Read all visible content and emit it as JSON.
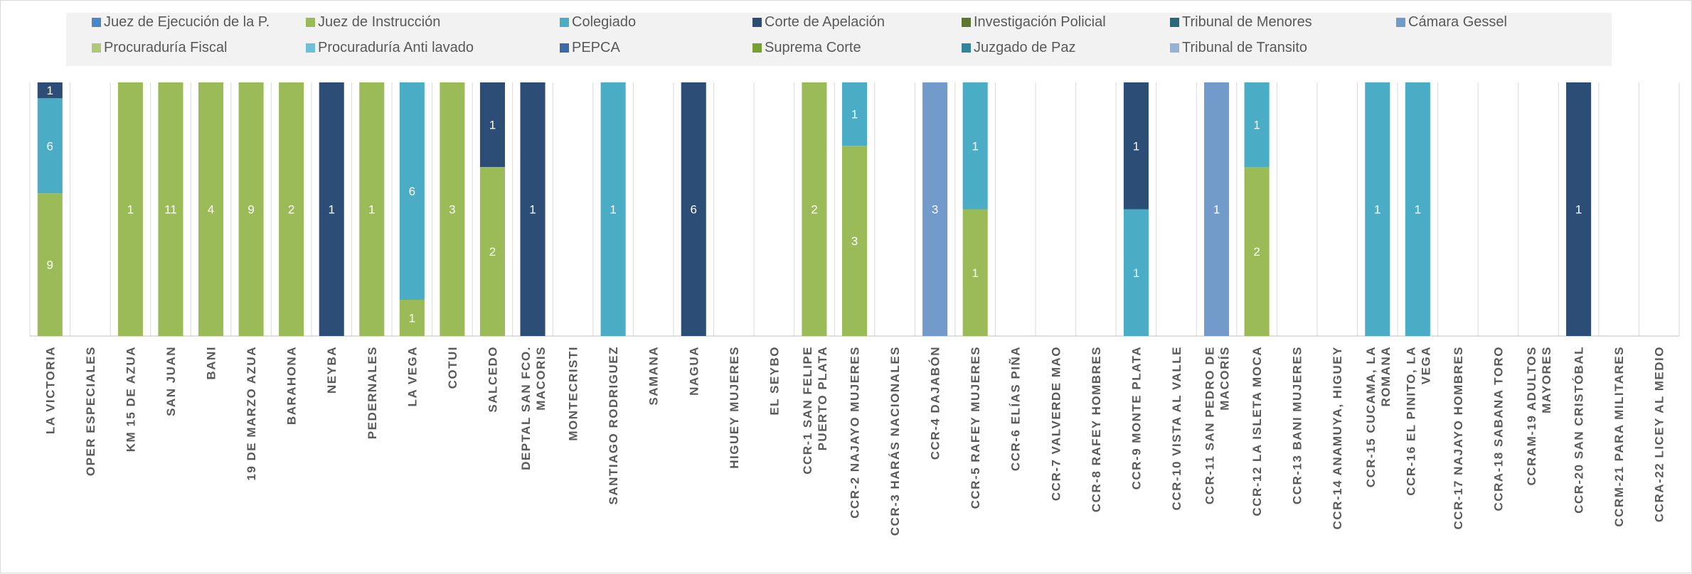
{
  "colors": {
    "Juez de Ejecución de la P.": "#4a86c8",
    "Juez de Instrucción": "#9bbb59",
    "Colegiado": "#4bacc6",
    "Corte de Apelación": "#2c4d75",
    "Investigación Policial": "#5f7530",
    "Tribunal de Menores": "#276a7c",
    "Cámara Gessel": "#729aca",
    "Procuraduría Fiscal": "#afc97a",
    "Procuraduría Anti lavado": "#6fc0d6",
    "PEPCA": "#3a6aa8",
    "Suprema Corte": "#77a033",
    "Juzgado de Paz": "#31859c",
    "Tribunal de Transito": "#95b3d7"
  },
  "chart_data": {
    "type": "bar",
    "stacked": "100%",
    "legend_position": "top",
    "gridlines": "vertical",
    "categories": [
      "LA VICTORIA",
      "OPER ESPECIALES",
      "KM 15 DE AZUA",
      "SAN JUAN",
      "BANI",
      "19 DE MARZO AZUA",
      "BARAHONA",
      "NEYBA",
      "PEDERNALES",
      "LA VEGA",
      "COTUI",
      "SALCEDO",
      "DEPTAL SAN FCO. MACORIS",
      "MONTECRISTI",
      "SANTIAGO RODRIGUEZ",
      "SAMANA",
      "NAGUA",
      "HIGUEY MUJERES",
      "EL SEYBO",
      "CCR-1 SAN FELIPE PUERTO PLATA",
      "CCR-2 NAJAYO MUJERES",
      "CCR-3 HARÁS NACIONALES",
      "CCR-4 DAJABÓN",
      "CCR-5 RAFEY MUJERES",
      "CCR-6 ELÍAS PIÑA",
      "CCR-7 VALVERDE MAO",
      "CCR-8 RAFEY HOMBRES",
      "CCR-9 MONTE PLATA",
      "CCR-10 VISTA AL VALLE",
      "CCR-11 SAN PEDRO DE MACORÍS",
      "CCR-12 LA ISLETA MOCA",
      "CCR-13 BANI MUJERES",
      "CCR-14 ANAMUYA, HIGUEY",
      "CCR-15 CUCAMA, LA ROMANA",
      "CCR-16 EL PINITO, LA VEGA",
      "CCR-17 NAJAYO HOMBRES",
      "CCRA-18 SABANA TORO",
      "CCRAM-19 ADULTOS MAYORES",
      "CCR-20 SAN CRISTÓBAL",
      "CCRM-21 PARA MILITARES",
      "CCRA-22 LICEY AL MEDIO"
    ],
    "series": [
      {
        "name": "Juez de Ejecución de la P.",
        "values": [
          0,
          0,
          0,
          0,
          0,
          0,
          0,
          0,
          0,
          0,
          0,
          0,
          0,
          0,
          0,
          0,
          0,
          0,
          0,
          0,
          0,
          0,
          0,
          0,
          0,
          0,
          0,
          0,
          0,
          0,
          0,
          0,
          0,
          0,
          0,
          0,
          0,
          0,
          0,
          0,
          0
        ]
      },
      {
        "name": "Juez de Instrucción",
        "values": [
          9,
          0,
          1,
          11,
          4,
          9,
          2,
          0,
          1,
          1,
          3,
          2,
          0,
          0,
          0,
          0,
          0,
          0,
          0,
          2,
          3,
          0,
          0,
          1,
          0,
          0,
          0,
          0,
          0,
          0,
          2,
          0,
          0,
          0,
          0,
          0,
          0,
          0,
          0,
          0,
          0
        ]
      },
      {
        "name": "Colegiado",
        "values": [
          6,
          0,
          0,
          0,
          0,
          0,
          0,
          0,
          0,
          6,
          0,
          0,
          0,
          0,
          1,
          0,
          0,
          0,
          0,
          0,
          1,
          0,
          0,
          1,
          0,
          0,
          0,
          1,
          0,
          0,
          1,
          0,
          0,
          1,
          1,
          0,
          0,
          0,
          0,
          0,
          0
        ]
      },
      {
        "name": "Corte de Apelación",
        "values": [
          1,
          0,
          0,
          0,
          0,
          0,
          0,
          1,
          0,
          0,
          0,
          1,
          1,
          0,
          0,
          0,
          6,
          0,
          0,
          0,
          0,
          0,
          0,
          0,
          0,
          0,
          0,
          1,
          0,
          0,
          0,
          0,
          0,
          0,
          0,
          0,
          0,
          0,
          1,
          0,
          0
        ]
      },
      {
        "name": "Investigación Policial",
        "values": [
          0,
          0,
          0,
          0,
          0,
          0,
          0,
          0,
          0,
          0,
          0,
          0,
          0,
          0,
          0,
          0,
          0,
          0,
          0,
          0,
          0,
          0,
          0,
          0,
          0,
          0,
          0,
          0,
          0,
          0,
          0,
          0,
          0,
          0,
          0,
          0,
          0,
          0,
          0,
          0,
          0
        ]
      },
      {
        "name": "Tribunal de Menores",
        "values": [
          0,
          0,
          0,
          0,
          0,
          0,
          0,
          0,
          0,
          0,
          0,
          0,
          0,
          0,
          0,
          0,
          0,
          0,
          0,
          0,
          0,
          0,
          0,
          0,
          0,
          0,
          0,
          0,
          0,
          0,
          0,
          0,
          0,
          0,
          0,
          0,
          0,
          0,
          0,
          0,
          0
        ]
      },
      {
        "name": "Cámara Gessel",
        "values": [
          0,
          0,
          0,
          0,
          0,
          0,
          0,
          0,
          0,
          0,
          0,
          0,
          0,
          0,
          0,
          0,
          0,
          0,
          0,
          0,
          0,
          0,
          3,
          0,
          0,
          0,
          0,
          0,
          0,
          1,
          0,
          0,
          0,
          0,
          0,
          0,
          0,
          0,
          0,
          0,
          0
        ]
      },
      {
        "name": "Procuraduría Fiscal",
        "values": [
          0,
          0,
          0,
          0,
          0,
          0,
          0,
          0,
          0,
          0,
          0,
          0,
          0,
          0,
          0,
          0,
          0,
          0,
          0,
          0,
          0,
          0,
          0,
          0,
          0,
          0,
          0,
          0,
          0,
          0,
          0,
          0,
          0,
          0,
          0,
          0,
          0,
          0,
          0,
          0,
          0
        ]
      },
      {
        "name": "Procuraduría Anti lavado",
        "values": [
          0,
          0,
          0,
          0,
          0,
          0,
          0,
          0,
          0,
          0,
          0,
          0,
          0,
          0,
          0,
          0,
          0,
          0,
          0,
          0,
          0,
          0,
          0,
          0,
          0,
          0,
          0,
          0,
          0,
          0,
          0,
          0,
          0,
          0,
          0,
          0,
          0,
          0,
          0,
          0,
          0
        ]
      },
      {
        "name": "PEPCA",
        "values": [
          0,
          0,
          0,
          0,
          0,
          0,
          0,
          0,
          0,
          0,
          0,
          0,
          0,
          0,
          0,
          0,
          0,
          0,
          0,
          0,
          0,
          0,
          0,
          0,
          0,
          0,
          0,
          0,
          0,
          0,
          0,
          0,
          0,
          0,
          0,
          0,
          0,
          0,
          0,
          0,
          0
        ]
      },
      {
        "name": "Suprema Corte",
        "values": [
          0,
          0,
          0,
          0,
          0,
          0,
          0,
          0,
          0,
          0,
          0,
          0,
          0,
          0,
          0,
          0,
          0,
          0,
          0,
          0,
          0,
          0,
          0,
          0,
          0,
          0,
          0,
          0,
          0,
          0,
          0,
          0,
          0,
          0,
          0,
          0,
          0,
          0,
          0,
          0,
          0
        ]
      },
      {
        "name": "Juzgado de Paz",
        "values": [
          0,
          0,
          0,
          0,
          0,
          0,
          0,
          0,
          0,
          0,
          0,
          0,
          0,
          0,
          0,
          0,
          0,
          0,
          0,
          0,
          0,
          0,
          0,
          0,
          0,
          0,
          0,
          0,
          0,
          0,
          0,
          0,
          0,
          0,
          0,
          0,
          0,
          0,
          0,
          0,
          0
        ]
      },
      {
        "name": "Tribunal de Transito",
        "values": [
          0,
          0,
          0,
          0,
          0,
          0,
          0,
          0,
          0,
          0,
          0,
          0,
          0,
          0,
          0,
          0,
          0,
          0,
          0,
          0,
          0,
          0,
          0,
          0,
          0,
          0,
          0,
          0,
          0,
          0,
          0,
          0,
          0,
          0,
          0,
          0,
          0,
          0,
          0,
          0,
          0
        ]
      }
    ]
  }
}
